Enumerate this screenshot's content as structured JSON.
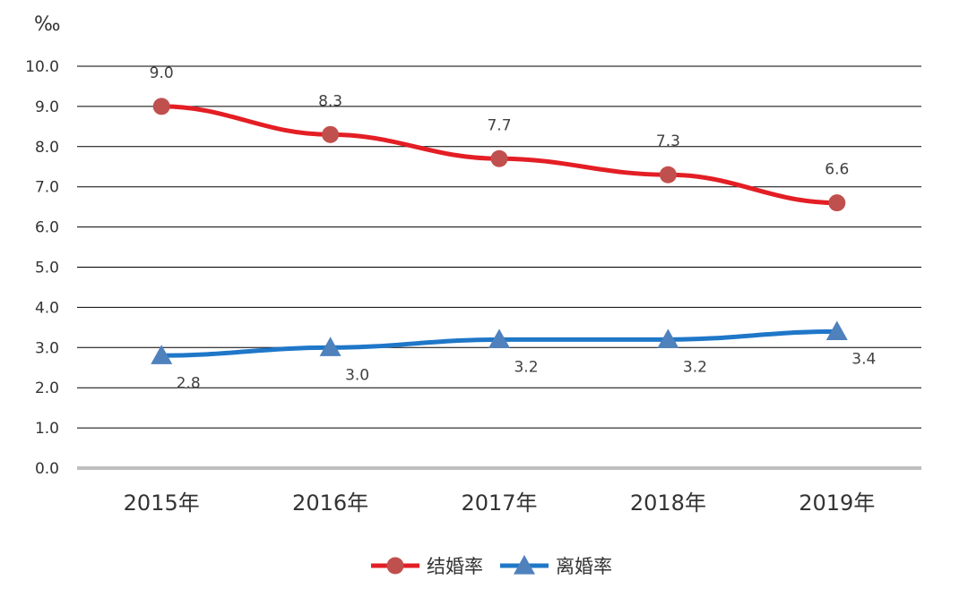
{
  "chart_data": {
    "type": "line",
    "unit_label": "‰",
    "categories": [
      "2015年",
      "2016年",
      "2017年",
      "2018年",
      "2019年"
    ],
    "ylim": [
      0,
      10
    ],
    "yticks": [
      "0.0",
      "1.0",
      "2.0",
      "3.0",
      "4.0",
      "5.0",
      "6.0",
      "7.0",
      "8.0",
      "9.0",
      "10.0"
    ],
    "grid": true,
    "legend_position": "bottom",
    "series": [
      {
        "name": "结婚率",
        "values": [
          9.0,
          8.3,
          7.7,
          7.3,
          6.6
        ],
        "labels": [
          "9.0",
          "8.3",
          "7.7",
          "7.3",
          "6.6"
        ],
        "color": "#e31e24",
        "marker_color": "#c0504d",
        "marker": "circle",
        "label_position": "above"
      },
      {
        "name": "离婚率",
        "values": [
          2.8,
          3.0,
          3.2,
          3.2,
          3.4
        ],
        "labels": [
          "2.8",
          "3.0",
          "3.2",
          "3.2",
          "3.4"
        ],
        "color": "#1f77c8",
        "marker_color": "#4f81bd",
        "marker": "triangle",
        "label_position": "below"
      }
    ]
  }
}
